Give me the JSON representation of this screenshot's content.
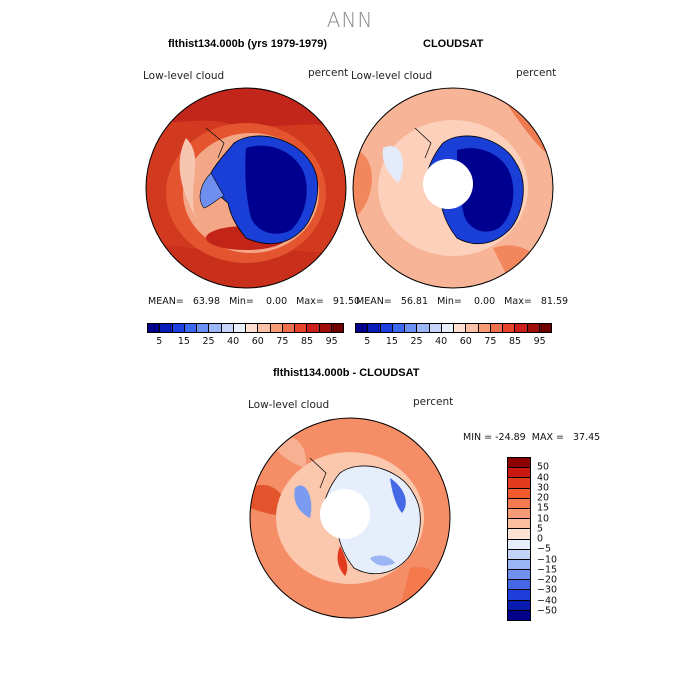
{
  "page_title": "ANN",
  "panels": [
    {
      "title": "flthist134.000b (yrs 1979-1979)",
      "variable": "Low-level cloud",
      "units": "percent",
      "stats": "MEAN=   63.98   Min=    0.00   Max=   91.50",
      "ocean_level": "85",
      "has_pole_hole": false
    },
    {
      "title": "CLOUDSAT",
      "variable": "Low-level cloud",
      "units": "percent",
      "stats": "MEAN=   56.81   Min=    0.00   Max=   81.59",
      "ocean_level": "70",
      "has_pole_hole": true
    },
    {
      "title": "flthist134.000b - CLOUDSAT",
      "variable": "Low-level cloud",
      "units": "percent",
      "stats": "MIN = -24.89  MAX =   37.45",
      "ocean_level": "15",
      "has_pole_hole": true
    }
  ],
  "colorbar_levels": [
    "5",
    "15",
    "25",
    "40",
    "60",
    "75",
    "85",
    "95"
  ],
  "colorbar_colors": [
    "#00008b",
    "#0a1cb8",
    "#1e40e0",
    "#3a68ee",
    "#6b8ff2",
    "#9bb5f6",
    "#c5d6fa",
    "#e9eefc",
    "#fde0d0",
    "#fcc0a4",
    "#f99a76",
    "#f3704c",
    "#e5442a",
    "#c9201a",
    "#a00d0d",
    "#6e0000"
  ],
  "diff_levels": [
    "50",
    "40",
    "30",
    "20",
    "15",
    "10",
    "5",
    "0",
    "−5",
    "−10",
    "−15",
    "−20",
    "−30",
    "−40",
    "−50"
  ],
  "diff_colors": [
    "#8b0000",
    "#c81810",
    "#e23a1c",
    "#f05a2c",
    "#f47a50",
    "#f89a76",
    "#fbbf9f",
    "#fde3d3",
    "#e6eefc",
    "#c2d4f8",
    "#9ab4f4",
    "#6f90ee",
    "#4468e6",
    "#1e3edc",
    "#0a1cb0",
    "#00008b"
  ],
  "map_colors": {
    "ice_dark": "#000090",
    "ice_mid": "#1a3fd6",
    "ice_edge": "#6f8ff0",
    "sea_ice": "#c9d8fa"
  }
}
